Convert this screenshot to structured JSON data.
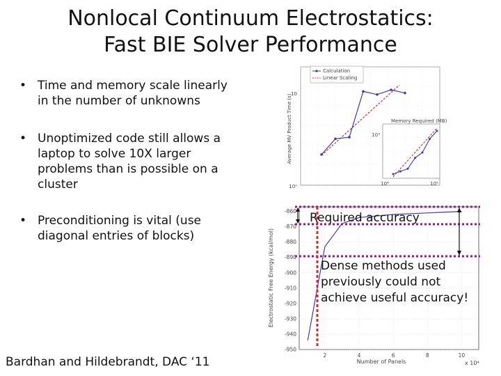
{
  "slide": {
    "title_line1": "Nonlocal Continuum Electrostatics:",
    "title_line2": "Fast BIE Solver Performance",
    "bullets": [
      {
        "text": "Time and memory scale linearly\nin the number of unknowns"
      },
      {
        "text": "Unoptimized code still allows a\nlaptop to solve 10X larger\nproblems than is possible on a\ncluster"
      },
      {
        "text": "Preconditioning is vital (use\ndiagonal entries of blocks)"
      }
    ],
    "citation": "Bardhan and Hildebrandt, DAC ‘11"
  },
  "annotations": {
    "required_accuracy": "Required accuracy",
    "dense_line1": "Dense methods used",
    "dense_line2": "previously could not",
    "dense_line3": "achieve useful accuracy!"
  },
  "colors": {
    "series": "#3b3bb0",
    "linear": "#c0302a",
    "threshold": "#8b1a8b",
    "dense": "#d42a2a"
  },
  "chart_data": [
    {
      "type": "line",
      "ylabel": "Average MV Product Time (s)",
      "y_tick_labels": [
        "10",
        "10⁰"
      ],
      "x_tick_labels": [
        "10⁴",
        "10⁵"
      ],
      "inset_title": "Memory Required (MB)",
      "inset_tick_label": "10³",
      "legend": [
        "Calculation",
        "Linear Scaling"
      ],
      "legend_position": "top-right",
      "log_scale": true,
      "series": [
        {
          "name": "Calculation",
          "x": [
            1,
            2,
            3,
            4,
            5,
            6,
            7
          ],
          "y": [
            1,
            2,
            2.1,
            5,
            4.8,
            5.1,
            4.9
          ]
        }
      ]
    },
    {
      "type": "line",
      "inset_title": "Memory Required (MB)",
      "series": [
        {
          "name": "Memory",
          "x": [
            1,
            2,
            3,
            4,
            5,
            6,
            7
          ],
          "y": [
            1,
            1.2,
            1.4,
            2.2,
            2.6,
            3.6,
            4.2
          ]
        }
      ]
    },
    {
      "type": "line",
      "xlabel": "Number of Panels",
      "ylabel": "Electrostatic Free Energy (kcal/mol)",
      "x_multiplier": "x 10⁴",
      "x_ticks": [
        2,
        4,
        6,
        8,
        10
      ],
      "y_ticks": [
        -860,
        -870,
        -880,
        -890,
        -900,
        -910,
        -920,
        -930,
        -940,
        -950
      ],
      "xlim": [
        0.5,
        11
      ],
      "ylim": [
        -950,
        -857
      ],
      "grid": true,
      "series": [
        {
          "name": "Energy",
          "x": [
            1,
            2,
            3,
            4,
            6,
            8,
            10
          ],
          "y": [
            -944,
            -883,
            -868,
            -864,
            -862,
            -861,
            -860
          ]
        }
      ]
    }
  ]
}
